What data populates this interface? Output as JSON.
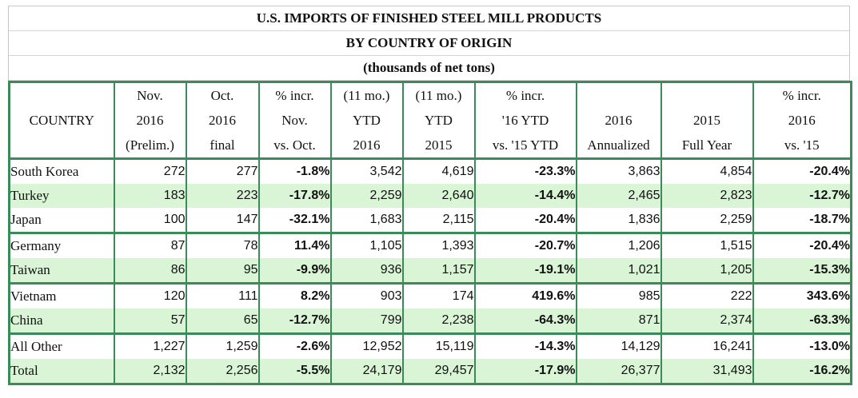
{
  "title": {
    "line1": "U.S. IMPORTS OF FINISHED STEEL MILL PRODUCTS",
    "line2": "BY COUNTRY OF ORIGIN",
    "line3": "(thousands of net tons)"
  },
  "headers": {
    "country": "COUNTRY",
    "cols": [
      [
        "Nov.",
        "2016",
        "(Prelim.)"
      ],
      [
        "Oct.",
        "2016",
        "final"
      ],
      [
        "% incr.",
        "Nov.",
        "vs. Oct."
      ],
      [
        "(11 mo.)",
        "YTD",
        "2016"
      ],
      [
        "(11 mo.)",
        "YTD",
        "2015"
      ],
      [
        "% incr.",
        "'16 YTD",
        "vs. '15 YTD"
      ],
      [
        "",
        "2016",
        "Annualized"
      ],
      [
        "",
        "2015",
        "Full Year"
      ],
      [
        "% incr.",
        "2016",
        "vs. '15"
      ]
    ]
  },
  "rows": [
    {
      "country": "South Korea",
      "v": [
        "272",
        "277",
        "-1.8%",
        "3,542",
        "4,619",
        "-23.3%",
        "3,863",
        "4,854",
        "-20.4%"
      ]
    },
    {
      "country": "Turkey",
      "v": [
        "183",
        "223",
        "-17.8%",
        "2,259",
        "2,640",
        "-14.4%",
        "2,465",
        "2,823",
        "-12.7%"
      ]
    },
    {
      "country": "Japan",
      "v": [
        "100",
        "147",
        "-32.1%",
        "1,683",
        "2,115",
        "-20.4%",
        "1,836",
        "2,259",
        "-18.7%"
      ]
    },
    {
      "country": "Germany",
      "v": [
        "87",
        "78",
        "11.4%",
        "1,105",
        "1,393",
        "-20.7%",
        "1,206",
        "1,515",
        "-20.4%"
      ]
    },
    {
      "country": "Taiwan",
      "v": [
        "86",
        "95",
        "-9.9%",
        "936",
        "1,157",
        "-19.1%",
        "1,021",
        "1,205",
        "-15.3%"
      ]
    },
    {
      "country": "Vietnam",
      "v": [
        "120",
        "111",
        "8.2%",
        "903",
        "174",
        "419.6%",
        "985",
        "222",
        "343.6%"
      ]
    },
    {
      "country": "China",
      "v": [
        "57",
        "65",
        "-12.7%",
        "799",
        "2,238",
        "-64.3%",
        "871",
        "2,374",
        "-63.3%"
      ]
    },
    {
      "country": "All Other",
      "v": [
        "1,227",
        "1,259",
        "-2.6%",
        "12,952",
        "15,119",
        "-14.3%",
        "14,129",
        "16,241",
        "-13.0%"
      ]
    },
    {
      "country": "Total",
      "v": [
        "2,132",
        "2,256",
        "-5.5%",
        "24,179",
        "29,457",
        "-17.9%",
        "26,377",
        "31,493",
        "-16.2%"
      ]
    }
  ],
  "colors": {
    "accent": "#3a8a5a",
    "stripe": "#d9f5d6"
  }
}
